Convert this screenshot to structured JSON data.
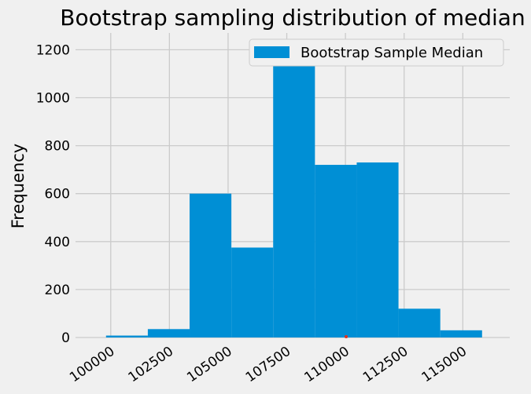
{
  "chart_data": {
    "type": "bar",
    "title": "Bootstrap sampling distribution of median",
    "xlabel": "",
    "ylabel": "Frequency",
    "xlim": [
      98500,
      117000
    ],
    "ylim": [
      0,
      1270
    ],
    "xticks": [
      100000,
      102500,
      105000,
      107500,
      110000,
      112500,
      115000
    ],
    "yticks": [
      0,
      200,
      400,
      600,
      800,
      1000,
      1200
    ],
    "grid": true,
    "bar_color": "#008fd5",
    "bins": [
      {
        "x0": 99800,
        "x1": 101580,
        "value": 8
      },
      {
        "x0": 101580,
        "x1": 103360,
        "value": 35
      },
      {
        "x0": 103360,
        "x1": 105140,
        "value": 600
      },
      {
        "x0": 105140,
        "x1": 106920,
        "value": 375
      },
      {
        "x0": 106920,
        "x1": 108700,
        "value": 1220
      },
      {
        "x0": 108700,
        "x1": 110480,
        "value": 720
      },
      {
        "x0": 110480,
        "x1": 112260,
        "value": 730
      },
      {
        "x0": 112260,
        "x1": 114040,
        "value": 120
      },
      {
        "x0": 114040,
        "x1": 115820,
        "value": 30
      }
    ],
    "marker": {
      "x": 110030,
      "y": 0,
      "color": "#e0301e"
    },
    "legend": {
      "position": "upper-right",
      "entries": [
        "Bootstrap Sample Median"
      ]
    }
  }
}
